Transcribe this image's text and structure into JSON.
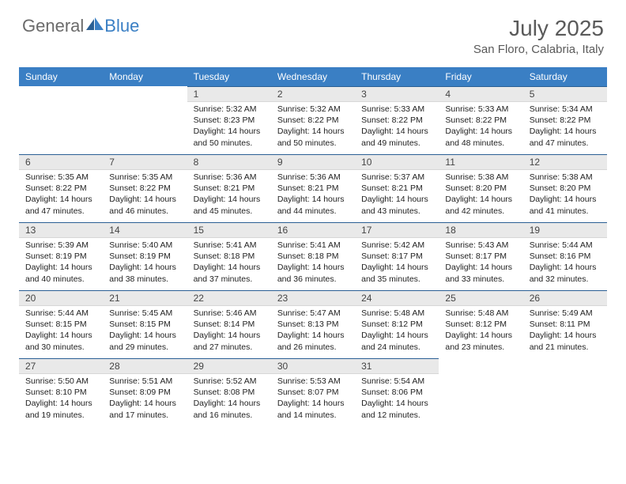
{
  "brand": {
    "text1": "General",
    "text2": "Blue"
  },
  "title": "July 2025",
  "location": "San Floro, Calabria, Italy",
  "header_bg": "#3a7fc4",
  "header_text_color": "#ffffff",
  "daynum_bg": "#e9e9e9",
  "daytop_border": "#2a5f94",
  "weekdays": [
    "Sunday",
    "Monday",
    "Tuesday",
    "Wednesday",
    "Thursday",
    "Friday",
    "Saturday"
  ],
  "weeks": [
    [
      null,
      null,
      {
        "n": "1",
        "sr": "5:32 AM",
        "ss": "8:23 PM",
        "dl": "14 hours and 50 minutes."
      },
      {
        "n": "2",
        "sr": "5:32 AM",
        "ss": "8:22 PM",
        "dl": "14 hours and 50 minutes."
      },
      {
        "n": "3",
        "sr": "5:33 AM",
        "ss": "8:22 PM",
        "dl": "14 hours and 49 minutes."
      },
      {
        "n": "4",
        "sr": "5:33 AM",
        "ss": "8:22 PM",
        "dl": "14 hours and 48 minutes."
      },
      {
        "n": "5",
        "sr": "5:34 AM",
        "ss": "8:22 PM",
        "dl": "14 hours and 47 minutes."
      }
    ],
    [
      {
        "n": "6",
        "sr": "5:35 AM",
        "ss": "8:22 PM",
        "dl": "14 hours and 47 minutes."
      },
      {
        "n": "7",
        "sr": "5:35 AM",
        "ss": "8:22 PM",
        "dl": "14 hours and 46 minutes."
      },
      {
        "n": "8",
        "sr": "5:36 AM",
        "ss": "8:21 PM",
        "dl": "14 hours and 45 minutes."
      },
      {
        "n": "9",
        "sr": "5:36 AM",
        "ss": "8:21 PM",
        "dl": "14 hours and 44 minutes."
      },
      {
        "n": "10",
        "sr": "5:37 AM",
        "ss": "8:21 PM",
        "dl": "14 hours and 43 minutes."
      },
      {
        "n": "11",
        "sr": "5:38 AM",
        "ss": "8:20 PM",
        "dl": "14 hours and 42 minutes."
      },
      {
        "n": "12",
        "sr": "5:38 AM",
        "ss": "8:20 PM",
        "dl": "14 hours and 41 minutes."
      }
    ],
    [
      {
        "n": "13",
        "sr": "5:39 AM",
        "ss": "8:19 PM",
        "dl": "14 hours and 40 minutes."
      },
      {
        "n": "14",
        "sr": "5:40 AM",
        "ss": "8:19 PM",
        "dl": "14 hours and 38 minutes."
      },
      {
        "n": "15",
        "sr": "5:41 AM",
        "ss": "8:18 PM",
        "dl": "14 hours and 37 minutes."
      },
      {
        "n": "16",
        "sr": "5:41 AM",
        "ss": "8:18 PM",
        "dl": "14 hours and 36 minutes."
      },
      {
        "n": "17",
        "sr": "5:42 AM",
        "ss": "8:17 PM",
        "dl": "14 hours and 35 minutes."
      },
      {
        "n": "18",
        "sr": "5:43 AM",
        "ss": "8:17 PM",
        "dl": "14 hours and 33 minutes."
      },
      {
        "n": "19",
        "sr": "5:44 AM",
        "ss": "8:16 PM",
        "dl": "14 hours and 32 minutes."
      }
    ],
    [
      {
        "n": "20",
        "sr": "5:44 AM",
        "ss": "8:15 PM",
        "dl": "14 hours and 30 minutes."
      },
      {
        "n": "21",
        "sr": "5:45 AM",
        "ss": "8:15 PM",
        "dl": "14 hours and 29 minutes."
      },
      {
        "n": "22",
        "sr": "5:46 AM",
        "ss": "8:14 PM",
        "dl": "14 hours and 27 minutes."
      },
      {
        "n": "23",
        "sr": "5:47 AM",
        "ss": "8:13 PM",
        "dl": "14 hours and 26 minutes."
      },
      {
        "n": "24",
        "sr": "5:48 AM",
        "ss": "8:12 PM",
        "dl": "14 hours and 24 minutes."
      },
      {
        "n": "25",
        "sr": "5:48 AM",
        "ss": "8:12 PM",
        "dl": "14 hours and 23 minutes."
      },
      {
        "n": "26",
        "sr": "5:49 AM",
        "ss": "8:11 PM",
        "dl": "14 hours and 21 minutes."
      }
    ],
    [
      {
        "n": "27",
        "sr": "5:50 AM",
        "ss": "8:10 PM",
        "dl": "14 hours and 19 minutes."
      },
      {
        "n": "28",
        "sr": "5:51 AM",
        "ss": "8:09 PM",
        "dl": "14 hours and 17 minutes."
      },
      {
        "n": "29",
        "sr": "5:52 AM",
        "ss": "8:08 PM",
        "dl": "14 hours and 16 minutes."
      },
      {
        "n": "30",
        "sr": "5:53 AM",
        "ss": "8:07 PM",
        "dl": "14 hours and 14 minutes."
      },
      {
        "n": "31",
        "sr": "5:54 AM",
        "ss": "8:06 PM",
        "dl": "14 hours and 12 minutes."
      },
      null,
      null
    ]
  ],
  "labels": {
    "sunrise": "Sunrise:",
    "sunset": "Sunset:",
    "daylight": "Daylight:"
  }
}
